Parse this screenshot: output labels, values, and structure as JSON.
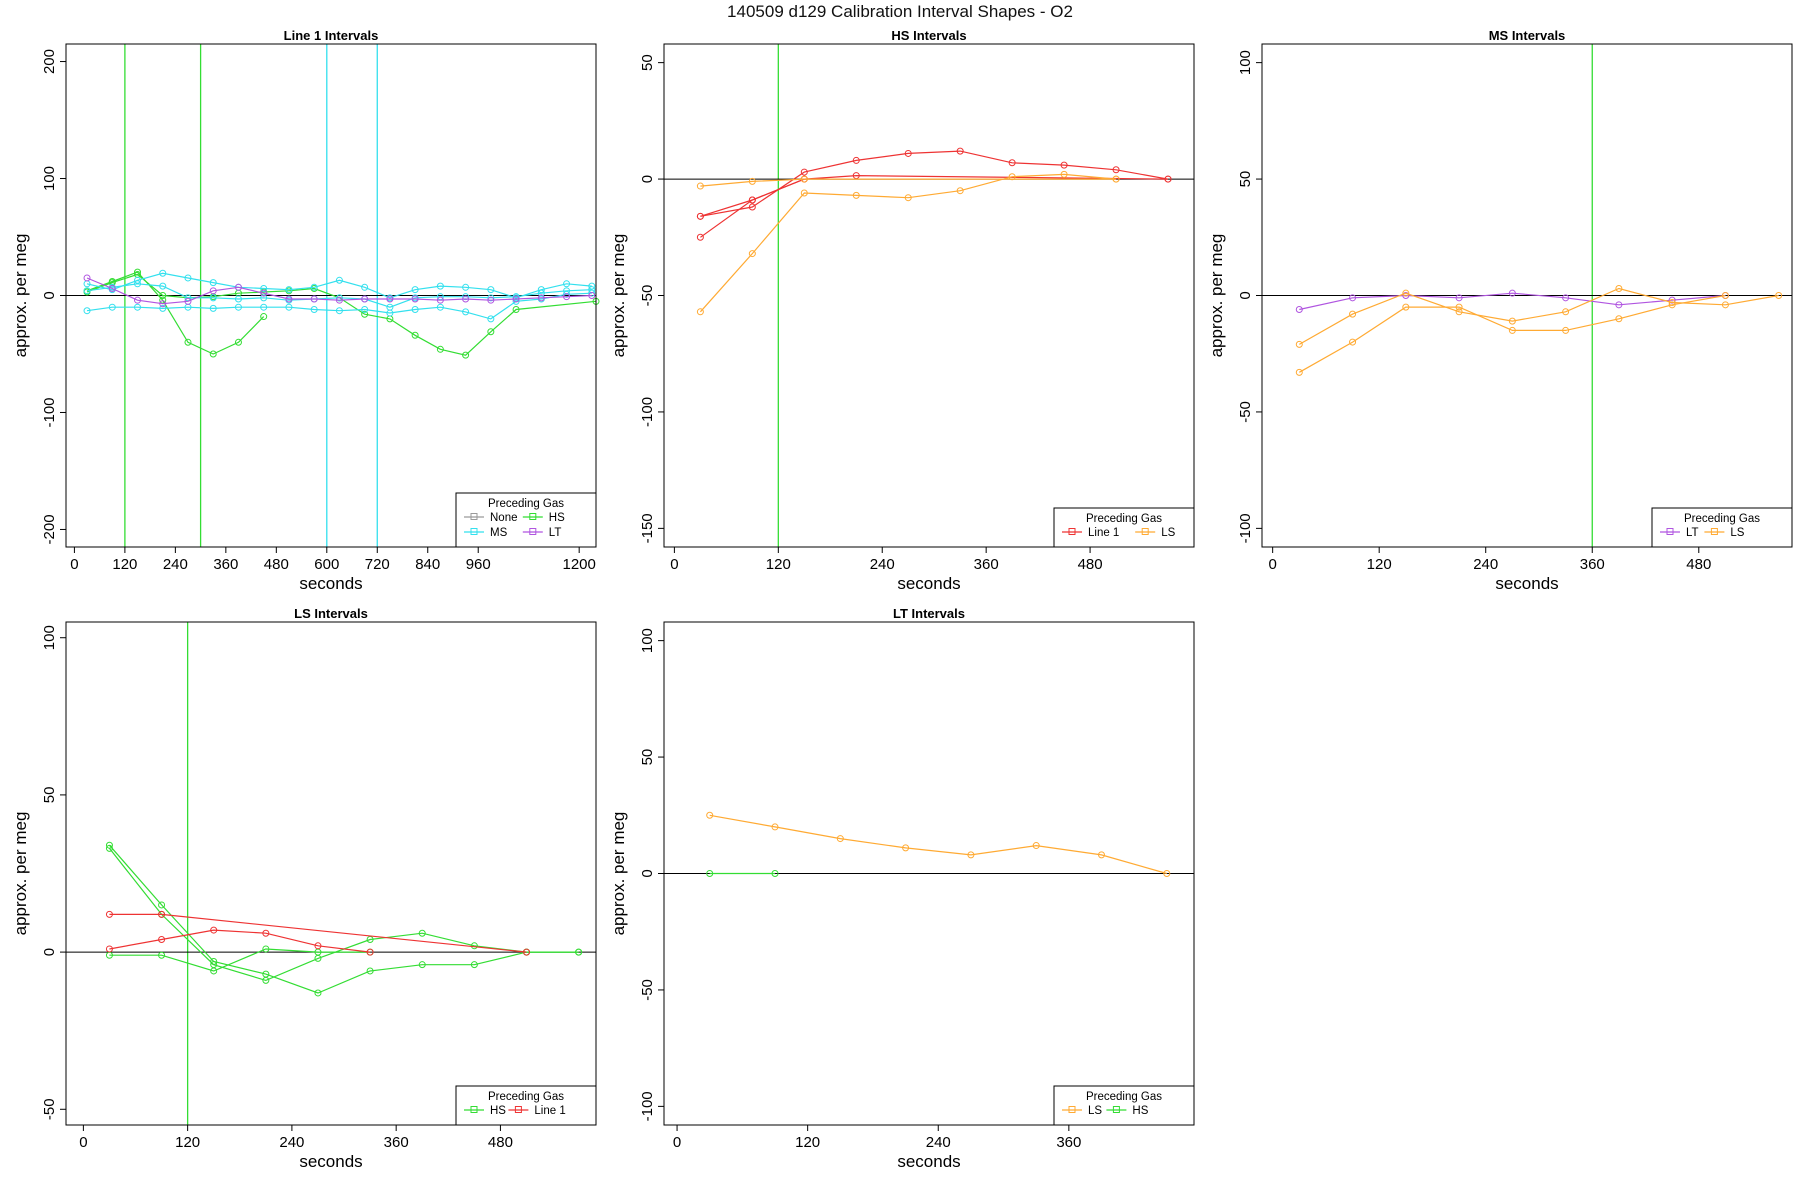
{
  "title": "140509   d129   Calibration Interval Shapes - O2",
  "colors": {
    "None": "#9a9a9a",
    "MS": "#33e0ee",
    "HS": "#33dd33",
    "LT": "#b055e0",
    "Line 1": "#ee3333",
    "LS": "#ffaa33",
    "axis": "#000000"
  },
  "chart_data": [
    {
      "type": "line",
      "title": "Line 1 Intervals",
      "xlabel": "seconds",
      "ylabel": "approx. per meg",
      "xlim": [
        -20,
        1240
      ],
      "ylim": [
        -215,
        215
      ],
      "xticks": [
        0,
        120,
        240,
        360,
        480,
        600,
        720,
        840,
        960,
        1200
      ],
      "yticks": [
        -200,
        -100,
        0,
        100,
        200
      ],
      "vlines": [
        {
          "x": 120,
          "color": "HS"
        },
        {
          "x": 300,
          "color": "HS"
        },
        {
          "x": 600,
          "color": "MS"
        },
        {
          "x": 720,
          "color": "MS"
        }
      ],
      "legend": {
        "title": "Preceding Gas",
        "entries": [
          "None",
          "HS",
          "MS",
          "LT"
        ],
        "columns": 2
      },
      "series": [
        {
          "name": "HS",
          "x": [
            30,
            90,
            150,
            210,
            270,
            330,
            390,
            450
          ],
          "y": [
            4,
            12,
            20,
            -4,
            -40,
            -50,
            -40,
            -18
          ]
        },
        {
          "name": "HS",
          "x": [
            30,
            90,
            150,
            210,
            270,
            330,
            390,
            450,
            510,
            570,
            630,
            690,
            750,
            810,
            870,
            930,
            990,
            1050,
            1240
          ],
          "y": [
            3,
            11,
            18,
            0,
            -2,
            -1,
            2,
            3,
            4,
            6,
            -2,
            -16,
            -20,
            -34,
            -46,
            -51,
            -31,
            -12,
            -5
          ]
        },
        {
          "name": "MS",
          "x": [
            30,
            90,
            150,
            210,
            270,
            330,
            390,
            450,
            510,
            570,
            630,
            690,
            750,
            810,
            870,
            930,
            990,
            1050,
            1110,
            1170,
            1230
          ],
          "y": [
            -13,
            -10,
            -10,
            -11,
            -10,
            -11,
            -10,
            -10,
            -10,
            -12,
            -13,
            -12,
            -15,
            -12,
            -10,
            -14,
            -20,
            -5,
            -3,
            1,
            2
          ]
        },
        {
          "name": "MS",
          "x": [
            30,
            90,
            150,
            210,
            270,
            330,
            390,
            450,
            510,
            570,
            630,
            690,
            750,
            810,
            870,
            930,
            990,
            1050,
            1110,
            1170,
            1230
          ],
          "y": [
            10,
            5,
            13,
            19,
            15,
            11,
            7,
            6,
            5,
            7,
            13,
            7,
            -2,
            5,
            8,
            7,
            5,
            -2,
            5,
            10,
            8
          ]
        },
        {
          "name": "MS",
          "x": [
            30,
            90,
            150,
            210,
            270,
            330,
            390,
            450,
            510,
            570,
            630,
            690,
            750,
            810,
            870,
            930,
            990,
            1050,
            1110,
            1170,
            1230
          ],
          "y": [
            4,
            7,
            10,
            8,
            -2,
            -2,
            -3,
            -2,
            -4,
            -3,
            -2,
            -3,
            -10,
            -2,
            -1,
            -1,
            -2,
            -1,
            2,
            4,
            5
          ]
        },
        {
          "name": "LT",
          "x": [
            30,
            90,
            150,
            210,
            270,
            330,
            390,
            450,
            510,
            570,
            630,
            690,
            750,
            810,
            870,
            930,
            990,
            1050,
            1110,
            1170,
            1230
          ],
          "y": [
            15,
            6,
            -4,
            -7,
            -5,
            4,
            7,
            2,
            -3,
            -3,
            -4,
            -3,
            -3,
            -3,
            -4,
            -3,
            -4,
            -3,
            -2,
            -1,
            0
          ]
        }
      ]
    },
    {
      "type": "line",
      "title": "HS Intervals",
      "xlabel": "seconds",
      "ylabel": "approx. per meg",
      "xlim": [
        -12,
        600
      ],
      "ylim": [
        -158,
        58
      ],
      "xticks": [
        0,
        120,
        240,
        360,
        480
      ],
      "yticks": [
        -150,
        -100,
        -50,
        0,
        50
      ],
      "vlines": [
        {
          "x": 120,
          "color": "HS"
        }
      ],
      "legend": {
        "title": "Preceding Gas",
        "entries": [
          "Line 1",
          "LS"
        ],
        "columns": 2
      },
      "series": [
        {
          "name": "Line 1",
          "x": [
            30,
            90,
            150,
            210,
            270,
            330,
            390,
            450,
            510,
            570
          ],
          "y": [
            -16,
            -12,
            3,
            8,
            11,
            12,
            7,
            6,
            4,
            0
          ]
        },
        {
          "name": "Line 1",
          "x": [
            30,
            90,
            150
          ],
          "y": [
            -25,
            -9,
            0
          ]
        },
        {
          "name": "Line 1",
          "x": [
            30,
            90,
            150,
            210,
            570
          ],
          "y": [
            -16,
            -9,
            0,
            1.5,
            0
          ]
        },
        {
          "name": "LS",
          "x": [
            30,
            90,
            150,
            210,
            270,
            330,
            390,
            450,
            510
          ],
          "y": [
            -57,
            -32,
            -6,
            -7,
            -8,
            -5,
            1,
            2,
            0
          ]
        },
        {
          "name": "LS",
          "x": [
            30,
            90,
            150,
            510
          ],
          "y": [
            -3,
            -1,
            0,
            0
          ]
        }
      ]
    },
    {
      "type": "line",
      "title": "MS Intervals",
      "xlabel": "seconds",
      "ylabel": "approx. per meg",
      "xlim": [
        -12,
        585
      ],
      "ylim": [
        -108,
        108
      ],
      "xticks": [
        0,
        120,
        240,
        360,
        480
      ],
      "yticks": [
        -100,
        -50,
        0,
        50,
        100
      ],
      "vlines": [
        {
          "x": 360,
          "color": "HS"
        }
      ],
      "legend": {
        "title": "Preceding Gas",
        "entries": [
          "LT",
          "LS"
        ],
        "columns": 2
      },
      "series": [
        {
          "name": "LT",
          "x": [
            30,
            90,
            150,
            210,
            270,
            330,
            390,
            450,
            510
          ],
          "y": [
            -6,
            -1,
            0,
            -1,
            1,
            -1,
            -4,
            -2,
            0
          ]
        },
        {
          "name": "LS",
          "x": [
            30,
            90,
            150,
            210,
            270,
            330,
            390,
            450,
            510,
            570
          ],
          "y": [
            -21,
            -8,
            1,
            -7,
            -11,
            -7,
            3,
            -3,
            -4,
            0
          ]
        },
        {
          "name": "LS",
          "x": [
            30,
            90,
            150,
            210,
            270,
            330,
            390,
            450,
            510
          ],
          "y": [
            -33,
            -20,
            -5,
            -5,
            -15,
            -15,
            -10,
            -4,
            0
          ]
        }
      ]
    },
    {
      "type": "line",
      "title": "LS Intervals",
      "xlabel": "seconds",
      "ylabel": "approx. per meg",
      "xlim": [
        -20,
        590
      ],
      "ylim": [
        -55,
        105
      ],
      "xticks": [
        0,
        120,
        240,
        360,
        480
      ],
      "yticks": [
        -50,
        0,
        50,
        100
      ],
      "vlines": [
        {
          "x": 120,
          "color": "HS"
        }
      ],
      "legend": {
        "title": "Preceding Gas",
        "entries": [
          "HS",
          "Line 1"
        ],
        "columns": 2
      },
      "series": [
        {
          "name": "HS",
          "x": [
            30,
            90,
            150,
            210,
            270,
            330,
            390,
            450,
            510,
            570
          ],
          "y": [
            34,
            15,
            -3,
            -7,
            -13,
            -6,
            -4,
            -4,
            0,
            0
          ]
        },
        {
          "name": "HS",
          "x": [
            30,
            90,
            150,
            210,
            270,
            330,
            390,
            450,
            510,
            570
          ],
          "y": [
            33,
            12,
            -4,
            -9,
            -2,
            4,
            6,
            2,
            0,
            0
          ]
        },
        {
          "name": "HS",
          "x": [
            30,
            90,
            150,
            210,
            270,
            330
          ],
          "y": [
            -1,
            -1,
            -6,
            1,
            0,
            0
          ]
        },
        {
          "name": "Line 1",
          "x": [
            30,
            90,
            510
          ],
          "y": [
            12,
            12,
            0
          ]
        },
        {
          "name": "Line 1",
          "x": [
            30,
            90,
            150,
            210,
            270,
            330
          ],
          "y": [
            1,
            4,
            7,
            6,
            2,
            0
          ]
        }
      ]
    },
    {
      "type": "line",
      "title": "LT Intervals",
      "xlabel": "seconds",
      "ylabel": "approx. per meg",
      "xlim": [
        -12,
        475
      ],
      "ylim": [
        -108,
        108
      ],
      "xticks": [
        0,
        120,
        240,
        360
      ],
      "yticks": [
        -100,
        -50,
        0,
        50,
        100
      ],
      "vlines": [],
      "legend": {
        "title": "Preceding Gas",
        "entries": [
          "LS",
          "HS"
        ],
        "columns": 2
      },
      "series": [
        {
          "name": "LS",
          "x": [
            30,
            90,
            150,
            210,
            270,
            330,
            390,
            450
          ],
          "y": [
            25,
            20,
            15,
            11,
            8,
            12,
            8,
            0
          ]
        },
        {
          "name": "HS",
          "x": [
            30,
            90
          ],
          "y": [
            0,
            0
          ]
        }
      ]
    }
  ]
}
